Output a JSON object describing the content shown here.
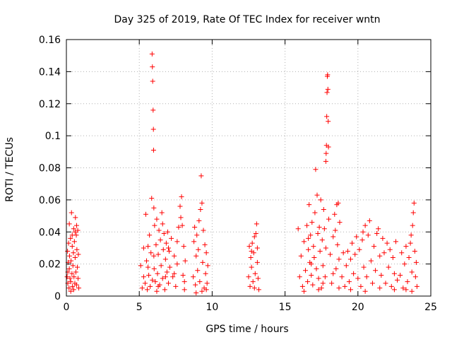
{
  "chart_data": {
    "type": "scatter",
    "title": "Day 325 of 2019, Rate Of TEC Index for receiver wntn",
    "xlabel": "GPS time / hours",
    "ylabel": "ROTI / TECUs",
    "xlim": [
      0,
      25
    ],
    "ylim": [
      0,
      0.16
    ],
    "xticks": [
      0,
      5,
      10,
      15,
      20,
      25
    ],
    "xtick_labels": [
      "0",
      "5",
      "10",
      "15",
      "20",
      "25"
    ],
    "yticks": [
      0,
      0.02,
      0.04,
      0.06,
      0.08,
      0.1,
      0.12,
      0.14,
      0.16
    ],
    "ytick_labels": [
      "0",
      "0.02",
      "0.04",
      "0.06",
      "0.08",
      "0.1",
      "0.12",
      "0.14",
      "0.16"
    ],
    "grid": true,
    "marker": "+",
    "color": "#ff0000",
    "series": [
      {
        "name": "ROTI",
        "points": [
          [
            0.05,
            0.012
          ],
          [
            0.08,
            0.028
          ],
          [
            0.1,
            0.008
          ],
          [
            0.12,
            0.021
          ],
          [
            0.15,
            0.033
          ],
          [
            0.18,
            0.005
          ],
          [
            0.2,
            0.017
          ],
          [
            0.22,
            0.025
          ],
          [
            0.25,
            0.011
          ],
          [
            0.28,
            0.036
          ],
          [
            0.3,
            0.009
          ],
          [
            0.32,
            0.022
          ],
          [
            0.35,
            0.052
          ],
          [
            0.38,
            0.014
          ],
          [
            0.4,
            0.031
          ],
          [
            0.42,
            0.006
          ],
          [
            0.45,
            0.019
          ],
          [
            0.48,
            0.027
          ],
          [
            0.5,
            0.042
          ],
          [
            0.52,
            0.012
          ],
          [
            0.55,
            0.034
          ],
          [
            0.58,
            0.008
          ],
          [
            0.6,
            0.024
          ],
          [
            0.62,
            0.049
          ],
          [
            0.65,
            0.015
          ],
          [
            0.68,
            0.038
          ],
          [
            0.7,
            0.007
          ],
          [
            0.72,
            0.029
          ],
          [
            0.75,
            0.018
          ],
          [
            0.78,
            0.041
          ],
          [
            0.8,
            0.011
          ],
          [
            0.82,
            0.026
          ],
          [
            0.85,
            0.005
          ],
          [
            0.2,
            0.045
          ],
          [
            0.4,
            0.038
          ],
          [
            0.6,
            0.04
          ],
          [
            0.7,
            0.044
          ],
          [
            0.3,
            0.003
          ],
          [
            0.5,
            0.004
          ],
          [
            0.1,
            0.015
          ],
          [
            5.1,
            0.019
          ],
          [
            5.2,
            0.005
          ],
          [
            5.3,
            0.012
          ],
          [
            5.4,
            0.008
          ],
          [
            5.45,
            0.051
          ],
          [
            5.5,
            0.022
          ],
          [
            5.55,
            0.004
          ],
          [
            5.6,
            0.031
          ],
          [
            5.65,
            0.013
          ],
          [
            5.7,
            0.038
          ],
          [
            5.75,
            0.006
          ],
          [
            5.8,
            0.027
          ],
          [
            5.85,
            0.061
          ],
          [
            5.88,
            0.151
          ],
          [
            5.9,
            0.143
          ],
          [
            5.92,
            0.134
          ],
          [
            5.95,
            0.116
          ],
          [
            5.97,
            0.104
          ],
          [
            5.98,
            0.091
          ],
          [
            6.0,
            0.055
          ],
          [
            6.02,
            0.017
          ],
          [
            6.05,
            0.044
          ],
          [
            6.1,
            0.009
          ],
          [
            6.15,
            0.032
          ],
          [
            6.2,
            0.048
          ],
          [
            6.25,
            0.014
          ],
          [
            6.3,
            0.026
          ],
          [
            6.35,
            0.041
          ],
          [
            6.4,
            0.007
          ],
          [
            6.45,
            0.035
          ],
          [
            6.5,
            0.019
          ],
          [
            6.55,
            0.052
          ],
          [
            6.6,
            0.011
          ],
          [
            6.65,
            0.029
          ],
          [
            6.7,
            0.039
          ],
          [
            6.75,
            0.004
          ],
          [
            6.8,
            0.023
          ],
          [
            6.85,
            0.033
          ],
          [
            6.9,
            0.015
          ],
          [
            6.95,
            0.04
          ],
          [
            7.0,
            0.008
          ],
          [
            7.05,
            0.028
          ],
          [
            7.1,
            0.018
          ],
          [
            7.2,
            0.036
          ],
          [
            7.3,
            0.012
          ],
          [
            7.4,
            0.025
          ],
          [
            7.5,
            0.006
          ],
          [
            7.6,
            0.034
          ],
          [
            7.7,
            0.043
          ],
          [
            7.8,
            0.056
          ],
          [
            7.85,
            0.049
          ],
          [
            7.9,
            0.062
          ],
          [
            7.95,
            0.044
          ],
          [
            8.0,
            0.013
          ],
          [
            8.05,
            0.031
          ],
          [
            8.1,
            0.009
          ],
          [
            8.15,
            0.022
          ],
          [
            5.3,
            0.03
          ],
          [
            5.6,
            0.018
          ],
          [
            6.0,
            0.025
          ],
          [
            6.3,
            0.006
          ],
          [
            6.6,
            0.045
          ],
          [
            7.0,
            0.03
          ],
          [
            7.4,
            0.014
          ],
          [
            5.9,
            0.01
          ],
          [
            6.2,
            0.003
          ],
          [
            6.8,
            0.012
          ],
          [
            7.6,
            0.02
          ],
          [
            8.1,
            0.004
          ],
          [
            8.7,
            0.012
          ],
          [
            8.75,
            0.034
          ],
          [
            8.8,
            0.043
          ],
          [
            8.85,
            0.007
          ],
          [
            8.9,
            0.025
          ],
          [
            8.95,
            0.038
          ],
          [
            9.0,
            0.016
          ],
          [
            9.05,
            0.029
          ],
          [
            9.1,
            0.047
          ],
          [
            9.15,
            0.009
          ],
          [
            9.2,
            0.054
          ],
          [
            9.25,
            0.075
          ],
          [
            9.3,
            0.058
          ],
          [
            9.35,
            0.021
          ],
          [
            9.4,
            0.041
          ],
          [
            9.45,
            0.005
          ],
          [
            9.5,
            0.032
          ],
          [
            9.55,
            0.014
          ],
          [
            9.6,
            0.027
          ],
          [
            9.65,
            0.008
          ],
          [
            9.7,
            0.019
          ],
          [
            8.9,
            0.002
          ],
          [
            9.3,
            0.003
          ],
          [
            9.6,
            0.004
          ],
          [
            12.5,
            0.012
          ],
          [
            12.55,
            0.031
          ],
          [
            12.6,
            0.006
          ],
          [
            12.65,
            0.024
          ],
          [
            12.7,
            0.018
          ],
          [
            12.75,
            0.033
          ],
          [
            12.8,
            0.009
          ],
          [
            12.85,
            0.027
          ],
          [
            12.9,
            0.037
          ],
          [
            12.95,
            0.014
          ],
          [
            13.0,
            0.039
          ],
          [
            13.05,
            0.045
          ],
          [
            13.1,
            0.021
          ],
          [
            13.15,
            0.011
          ],
          [
            13.2,
            0.004
          ],
          [
            12.7,
            0.028
          ],
          [
            12.9,
            0.005
          ],
          [
            13.1,
            0.03
          ],
          [
            15.9,
            0.042
          ],
          [
            16.0,
            0.012
          ],
          [
            16.1,
            0.025
          ],
          [
            16.2,
            0.006
          ],
          [
            16.3,
            0.034
          ],
          [
            16.4,
            0.016
          ],
          [
            16.5,
            0.044
          ],
          [
            16.55,
            0.009
          ],
          [
            16.6,
            0.029
          ],
          [
            16.65,
            0.057
          ],
          [
            16.7,
            0.021
          ],
          [
            16.75,
            0.038
          ],
          [
            16.8,
            0.013
          ],
          [
            16.85,
            0.046
          ],
          [
            16.9,
            0.007
          ],
          [
            16.95,
            0.031
          ],
          [
            17.0,
            0.024
          ],
          [
            17.05,
            0.052
          ],
          [
            17.1,
            0.079
          ],
          [
            17.15,
            0.017
          ],
          [
            17.2,
            0.063
          ],
          [
            17.25,
            0.039
          ],
          [
            17.3,
            0.011
          ],
          [
            17.35,
            0.043
          ],
          [
            17.4,
            0.028
          ],
          [
            17.45,
            0.06
          ],
          [
            17.5,
            0.005
          ],
          [
            17.55,
            0.035
          ],
          [
            17.6,
            0.019
          ],
          [
            17.65,
            0.054
          ],
          [
            17.7,
            0.042
          ],
          [
            17.75,
            0.012
          ],
          [
            17.8,
            0.084
          ],
          [
            17.82,
            0.089
          ],
          [
            17.84,
            0.094
          ],
          [
            17.86,
            0.112
          ],
          [
            17.88,
            0.127
          ],
          [
            17.9,
            0.137
          ],
          [
            17.92,
            0.138
          ],
          [
            17.94,
            0.129
          ],
          [
            17.96,
            0.109
          ],
          [
            17.98,
            0.093
          ],
          [
            18.0,
            0.048
          ],
          [
            18.1,
            0.026
          ],
          [
            18.2,
            0.008
          ],
          [
            18.3,
            0.037
          ],
          [
            18.4,
            0.051
          ],
          [
            18.45,
            0.041
          ],
          [
            18.5,
            0.017
          ],
          [
            18.55,
            0.057
          ],
          [
            18.6,
            0.032
          ],
          [
            18.65,
            0.058
          ],
          [
            18.7,
            0.023
          ],
          [
            18.75,
            0.046
          ],
          [
            16.3,
            0.003
          ],
          [
            16.8,
            0.02
          ],
          [
            17.3,
            0.004
          ],
          [
            17.8,
            0.03
          ],
          [
            18.3,
            0.014
          ],
          [
            18.7,
            0.005
          ],
          [
            16.6,
            0.036
          ],
          [
            17.6,
            0.008
          ],
          [
            18.9,
            0.012
          ],
          [
            19.0,
            0.027
          ],
          [
            19.1,
            0.006
          ],
          [
            19.2,
            0.019
          ],
          [
            19.3,
            0.028
          ],
          [
            19.4,
            0.009
          ],
          [
            19.5,
            0.023
          ],
          [
            19.6,
            0.033
          ],
          [
            19.7,
            0.014
          ],
          [
            19.8,
            0.026
          ],
          [
            19.9,
            0.037
          ],
          [
            20.0,
            0.011
          ],
          [
            20.1,
            0.029
          ],
          [
            20.2,
            0.006
          ],
          [
            20.3,
            0.035
          ],
          [
            20.35,
            0.04
          ],
          [
            20.4,
            0.018
          ],
          [
            20.5,
            0.044
          ],
          [
            20.6,
            0.012
          ],
          [
            20.7,
            0.038
          ],
          [
            20.8,
            0.047
          ],
          [
            20.9,
            0.022
          ],
          [
            21.0,
            0.008
          ],
          [
            21.1,
            0.031
          ],
          [
            21.2,
            0.016
          ],
          [
            21.3,
            0.039
          ],
          [
            21.4,
            0.042
          ],
          [
            21.5,
            0.025
          ],
          [
            21.6,
            0.013
          ],
          [
            21.7,
            0.036
          ],
          [
            21.8,
            0.027
          ],
          [
            21.9,
            0.008
          ],
          [
            22.0,
            0.033
          ],
          [
            22.1,
            0.018
          ],
          [
            22.2,
            0.029
          ],
          [
            22.3,
            0.006
          ],
          [
            22.4,
            0.024
          ],
          [
            22.5,
            0.014
          ],
          [
            22.6,
            0.034
          ],
          [
            22.7,
            0.01
          ],
          [
            19.5,
            0.004
          ],
          [
            20.5,
            0.003
          ],
          [
            21.5,
            0.005
          ],
          [
            22.5,
            0.004
          ],
          [
            22.9,
            0.013
          ],
          [
            23.0,
            0.027
          ],
          [
            23.1,
            0.005
          ],
          [
            23.2,
            0.02
          ],
          [
            23.3,
            0.031
          ],
          [
            23.4,
            0.009
          ],
          [
            23.5,
            0.024
          ],
          [
            23.6,
            0.033
          ],
          [
            23.65,
            0.038
          ],
          [
            23.7,
            0.015
          ],
          [
            23.75,
            0.044
          ],
          [
            23.8,
            0.052
          ],
          [
            23.85,
            0.058
          ],
          [
            23.9,
            0.028
          ],
          [
            23.95,
            0.012
          ],
          [
            24.0,
            0.021
          ],
          [
            24.05,
            0.006
          ],
          [
            23.3,
            0.004
          ],
          [
            23.7,
            0.003
          ]
        ]
      }
    ]
  }
}
